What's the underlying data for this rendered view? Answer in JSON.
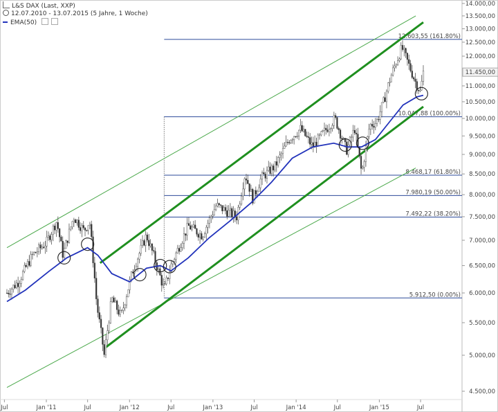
{
  "header": {
    "app_icon": "chart-icon",
    "title": "L&S DAX (Last, XXP)",
    "clock_icon": "clock-icon",
    "range": "12.07.2010 - 13.07.2015 (5 Jahre, 1 Woche)",
    "ema_label": "EMA(50)",
    "ema_color": "#2233bb"
  },
  "chart_data": {
    "type": "candlestick",
    "y_scale": "log",
    "ylim": [
      4500,
      14000
    ],
    "xlim": [
      "2010-07-12",
      "2015-07-13"
    ],
    "y_ticks": [
      {
        "v": 14000,
        "label": "14.000,00"
      },
      {
        "v": 13500,
        "label": "13.500,00"
      },
      {
        "v": 13000,
        "label": "13.000,00"
      },
      {
        "v": 12500,
        "label": "12.500,00"
      },
      {
        "v": 12000,
        "label": "12.000,00"
      },
      {
        "v": 11000,
        "label": "11.000,00"
      },
      {
        "v": 10500,
        "label": "10.500,00"
      },
      {
        "v": 10000,
        "label": "10.000,00"
      },
      {
        "v": 9500,
        "label": "9.500,00"
      },
      {
        "v": 9000,
        "label": "9.000,00"
      },
      {
        "v": 8500,
        "label": "8.500,00"
      },
      {
        "v": 8000,
        "label": "8.000,00"
      },
      {
        "v": 7500,
        "label": "7.500,00"
      },
      {
        "v": 7000,
        "label": "7.000,00"
      },
      {
        "v": 6500,
        "label": "6.500,00"
      },
      {
        "v": 6000,
        "label": "6.000,00"
      },
      {
        "v": 5500,
        "label": "5.500,00"
      },
      {
        "v": 5000,
        "label": "5.000,00"
      },
      {
        "v": 4500,
        "label": "4.500,00"
      }
    ],
    "last_price": {
      "v": 11450,
      "label": "11.450,00"
    },
    "x_ticks": [
      {
        "d": "2010-07-01",
        "label": "Jul"
      },
      {
        "d": "2011-01-01",
        "label": "Jan '11"
      },
      {
        "d": "2011-07-01",
        "label": "Jul"
      },
      {
        "d": "2012-01-01",
        "label": "Jan '12"
      },
      {
        "d": "2012-07-01",
        "label": "Jul"
      },
      {
        "d": "2013-01-01",
        "label": "Jan '13"
      },
      {
        "d": "2013-07-01",
        "label": "Jul"
      },
      {
        "d": "2014-01-01",
        "label": "Jan '14"
      },
      {
        "d": "2014-07-01",
        "label": "Jul"
      },
      {
        "d": "2015-01-01",
        "label": "Jan '15"
      },
      {
        "d": "2015-07-01",
        "label": "Jul"
      }
    ],
    "price_path": [
      [
        "2010-07-12",
        6000
      ],
      [
        "2010-09-01",
        6200
      ],
      [
        "2010-11-01",
        6700
      ],
      [
        "2011-01-01",
        6950
      ],
      [
        "2011-02-15",
        7400
      ],
      [
        "2011-03-15",
        6700
      ],
      [
        "2011-05-01",
        7500
      ],
      [
        "2011-06-15",
        7200
      ],
      [
        "2011-07-10",
        7400
      ],
      [
        "2011-08-10",
        5800
      ],
      [
        "2011-09-12",
        5000
      ],
      [
        "2011-10-15",
        5900
      ],
      [
        "2011-11-25",
        5600
      ],
      [
        "2012-01-15",
        6400
      ],
      [
        "2012-03-15",
        7100
      ],
      [
        "2012-04-15",
        6700
      ],
      [
        "2012-06-01",
        6050
      ],
      [
        "2012-07-01",
        6500
      ],
      [
        "2012-09-15",
        7300
      ],
      [
        "2012-11-15",
        7100
      ],
      [
        "2013-01-15",
        7750
      ],
      [
        "2013-04-15",
        7500
      ],
      [
        "2013-05-22",
        8500
      ],
      [
        "2013-06-25",
        7900
      ],
      [
        "2013-08-01",
        8400
      ],
      [
        "2013-10-01",
        8700
      ],
      [
        "2013-12-01",
        9400
      ],
      [
        "2014-01-20",
        9700
      ],
      [
        "2014-03-15",
        9200
      ],
      [
        "2014-06-20",
        10000
      ],
      [
        "2014-08-10",
        9100
      ],
      [
        "2014-09-15",
        9700
      ],
      [
        "2014-10-16",
        8500
      ],
      [
        "2014-11-20",
        9800
      ],
      [
        "2014-12-20",
        9900
      ],
      [
        "2015-01-20",
        10500
      ],
      [
        "2015-02-20",
        11300
      ],
      [
        "2015-04-10",
        12300
      ],
      [
        "2015-05-15",
        11600
      ],
      [
        "2015-06-10",
        11100
      ],
      [
        "2015-06-30",
        10800
      ],
      [
        "2015-07-13",
        11450
      ]
    ],
    "ema50_path": [
      [
        "2010-07-12",
        5850
      ],
      [
        "2010-10-01",
        6050
      ],
      [
        "2011-01-15",
        6400
      ],
      [
        "2011-04-01",
        6650
      ],
      [
        "2011-07-01",
        6850
      ],
      [
        "2011-08-15",
        6700
      ],
      [
        "2011-10-15",
        6350
      ],
      [
        "2012-01-01",
        6200
      ],
      [
        "2012-03-15",
        6450
      ],
      [
        "2012-05-15",
        6500
      ],
      [
        "2012-07-01",
        6400
      ],
      [
        "2012-09-15",
        6650
      ],
      [
        "2012-12-15",
        7050
      ],
      [
        "2013-03-15",
        7400
      ],
      [
        "2013-06-15",
        7800
      ],
      [
        "2013-09-15",
        8300
      ],
      [
        "2013-12-15",
        8900
      ],
      [
        "2014-03-15",
        9200
      ],
      [
        "2014-06-15",
        9300
      ],
      [
        "2014-08-15",
        9200
      ],
      [
        "2014-10-15",
        9200
      ],
      [
        "2014-12-15",
        9400
      ],
      [
        "2015-02-15",
        9900
      ],
      [
        "2015-04-15",
        10400
      ],
      [
        "2015-06-15",
        10650
      ],
      [
        "2015-07-13",
        10700
      ]
    ],
    "fibonacci": [
      {
        "v": 12603.55,
        "label": "12.603,55 (161.80%)"
      },
      {
        "v": 10047.88,
        "label": "10.047,88 (100.00%)"
      },
      {
        "v": 8468.17,
        "label": "8.468,17 (61.80%)"
      },
      {
        "v": 7980.19,
        "label": "7.980,19 (50.00%)"
      },
      {
        "v": 7492.22,
        "label": "7.492,22 (38.20%)"
      },
      {
        "v": 5912.5,
        "label": "5.912,50 (0.00%)"
      }
    ],
    "fib_start": "2012-06-01",
    "channel_thick": [
      [
        [
          "2011-08-25",
          6550
        ],
        [
          "2015-07-13",
          13250
        ]
      ],
      [
        [
          "2011-09-12",
          5100
        ],
        [
          "2015-07-13",
          10350
        ]
      ]
    ],
    "channel_thin": [
      [
        [
          "2010-07-12",
          6850
        ],
        [
          "2015-06-10",
          13500
        ]
      ],
      [
        [
          "2010-07-12",
          4550
        ],
        [
          "2015-06-10",
          8650
        ]
      ]
    ],
    "circles": [
      [
        "2011-03-20",
        6650
      ],
      [
        "2011-07-01",
        6920
      ],
      [
        "2012-02-15",
        6330
      ],
      [
        "2012-05-15",
        6500
      ],
      [
        "2012-06-25",
        6480
      ],
      [
        "2014-08-05",
        9250
      ],
      [
        "2014-10-20",
        9300
      ],
      [
        "2015-07-05",
        10750
      ]
    ]
  }
}
